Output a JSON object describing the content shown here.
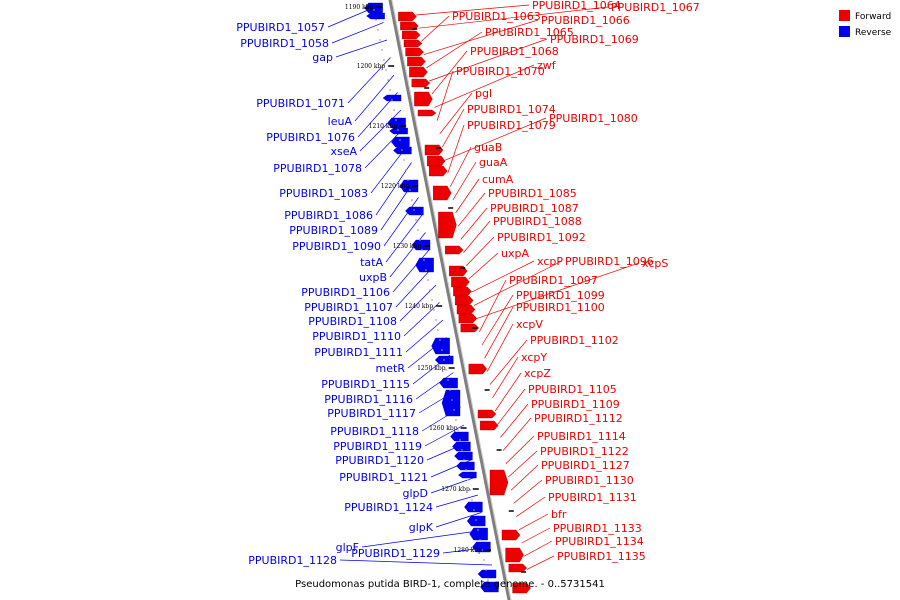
{
  "caption": "Pseudomonas putida BIRD-1, complete genome. - 0..5731541",
  "legend": [
    {
      "label": "Forward",
      "color": "#ee0000"
    },
    {
      "label": "Reverse",
      "color": "#0000ee"
    }
  ],
  "colors": {
    "forward": "#ee0000",
    "reverse": "#0000ee",
    "backbone": "#7f7f7f"
  },
  "ticks": [
    "1190 kbp",
    "1200 kbp",
    "1210 kbp",
    "1220 kbp",
    "1230 kbp",
    "1240 kbp",
    "1250 kbp",
    "1260 kbp",
    "1270 kbp",
    "1280 kbp"
  ],
  "reverse_genes": [
    "PPUBIRD1_1057",
    "PPUBIRD1_1058",
    "gap",
    "PPUBIRD1_1071",
    "leuA",
    "PPUBIRD1_1076",
    "xseA",
    "PPUBIRD1_1078",
    "PPUBIRD1_1083",
    "PPUBIRD1_1086",
    "PPUBIRD1_1089",
    "PPUBIRD1_1090",
    "tatA",
    "uxpB",
    "PPUBIRD1_1106",
    "PPUBIRD1_1107",
    "PPUBIRD1_1108",
    "PPUBIRD1_1110",
    "PPUBIRD1_1111",
    "metR",
    "PPUBIRD1_1115",
    "PPUBIRD1_1116",
    "PPUBIRD1_1117",
    "PPUBIRD1_1118",
    "PPUBIRD1_1119",
    "PPUBIRD1_1120",
    "PPUBIRD1_1121",
    "glpD",
    "PPUBIRD1_1124",
    "glpK",
    "glpF",
    "PPUBIRD1_1129",
    "PPUBIRD1_1128"
  ],
  "forward_genes": [
    "PPUBIRD1_1064",
    "PPUBIRD1_1067",
    "PPUBIRD1_1063",
    "PPUBIRD1_1066",
    "PPUBIRD1_1065",
    "PPUBIRD1_1069",
    "PPUBIRD1_1068",
    "zwf",
    "PPUBIRD1_1070",
    "pgl",
    "PPUBIRD1_1074",
    "PPUBIRD1_1080",
    "PPUBIRD1_1079",
    "guaB",
    "guaA",
    "cumA",
    "PPUBIRD1_1085",
    "PPUBIRD1_1087",
    "PPUBIRD1_1088",
    "PPUBIRD1_1092",
    "uxpA",
    "xcpP",
    "PPUBIRD1_1096",
    "xcpS",
    "PPUBIRD1_1097",
    "PPUBIRD1_1099",
    "PPUBIRD1_1100",
    "xcpV",
    "PPUBIRD1_1102",
    "xcpY",
    "xcpZ",
    "PPUBIRD1_1105",
    "PPUBIRD1_1109",
    "PPUBIRD1_1112",
    "PPUBIRD1_1114",
    "PPUBIRD1_1122",
    "PPUBIRD1_1127",
    "PPUBIRD1_1130",
    "PPUBIRD1_1131",
    "bfr",
    "PPUBIRD1_1133",
    "PPUBIRD1_1134",
    "PPUBIRD1_1135"
  ]
}
